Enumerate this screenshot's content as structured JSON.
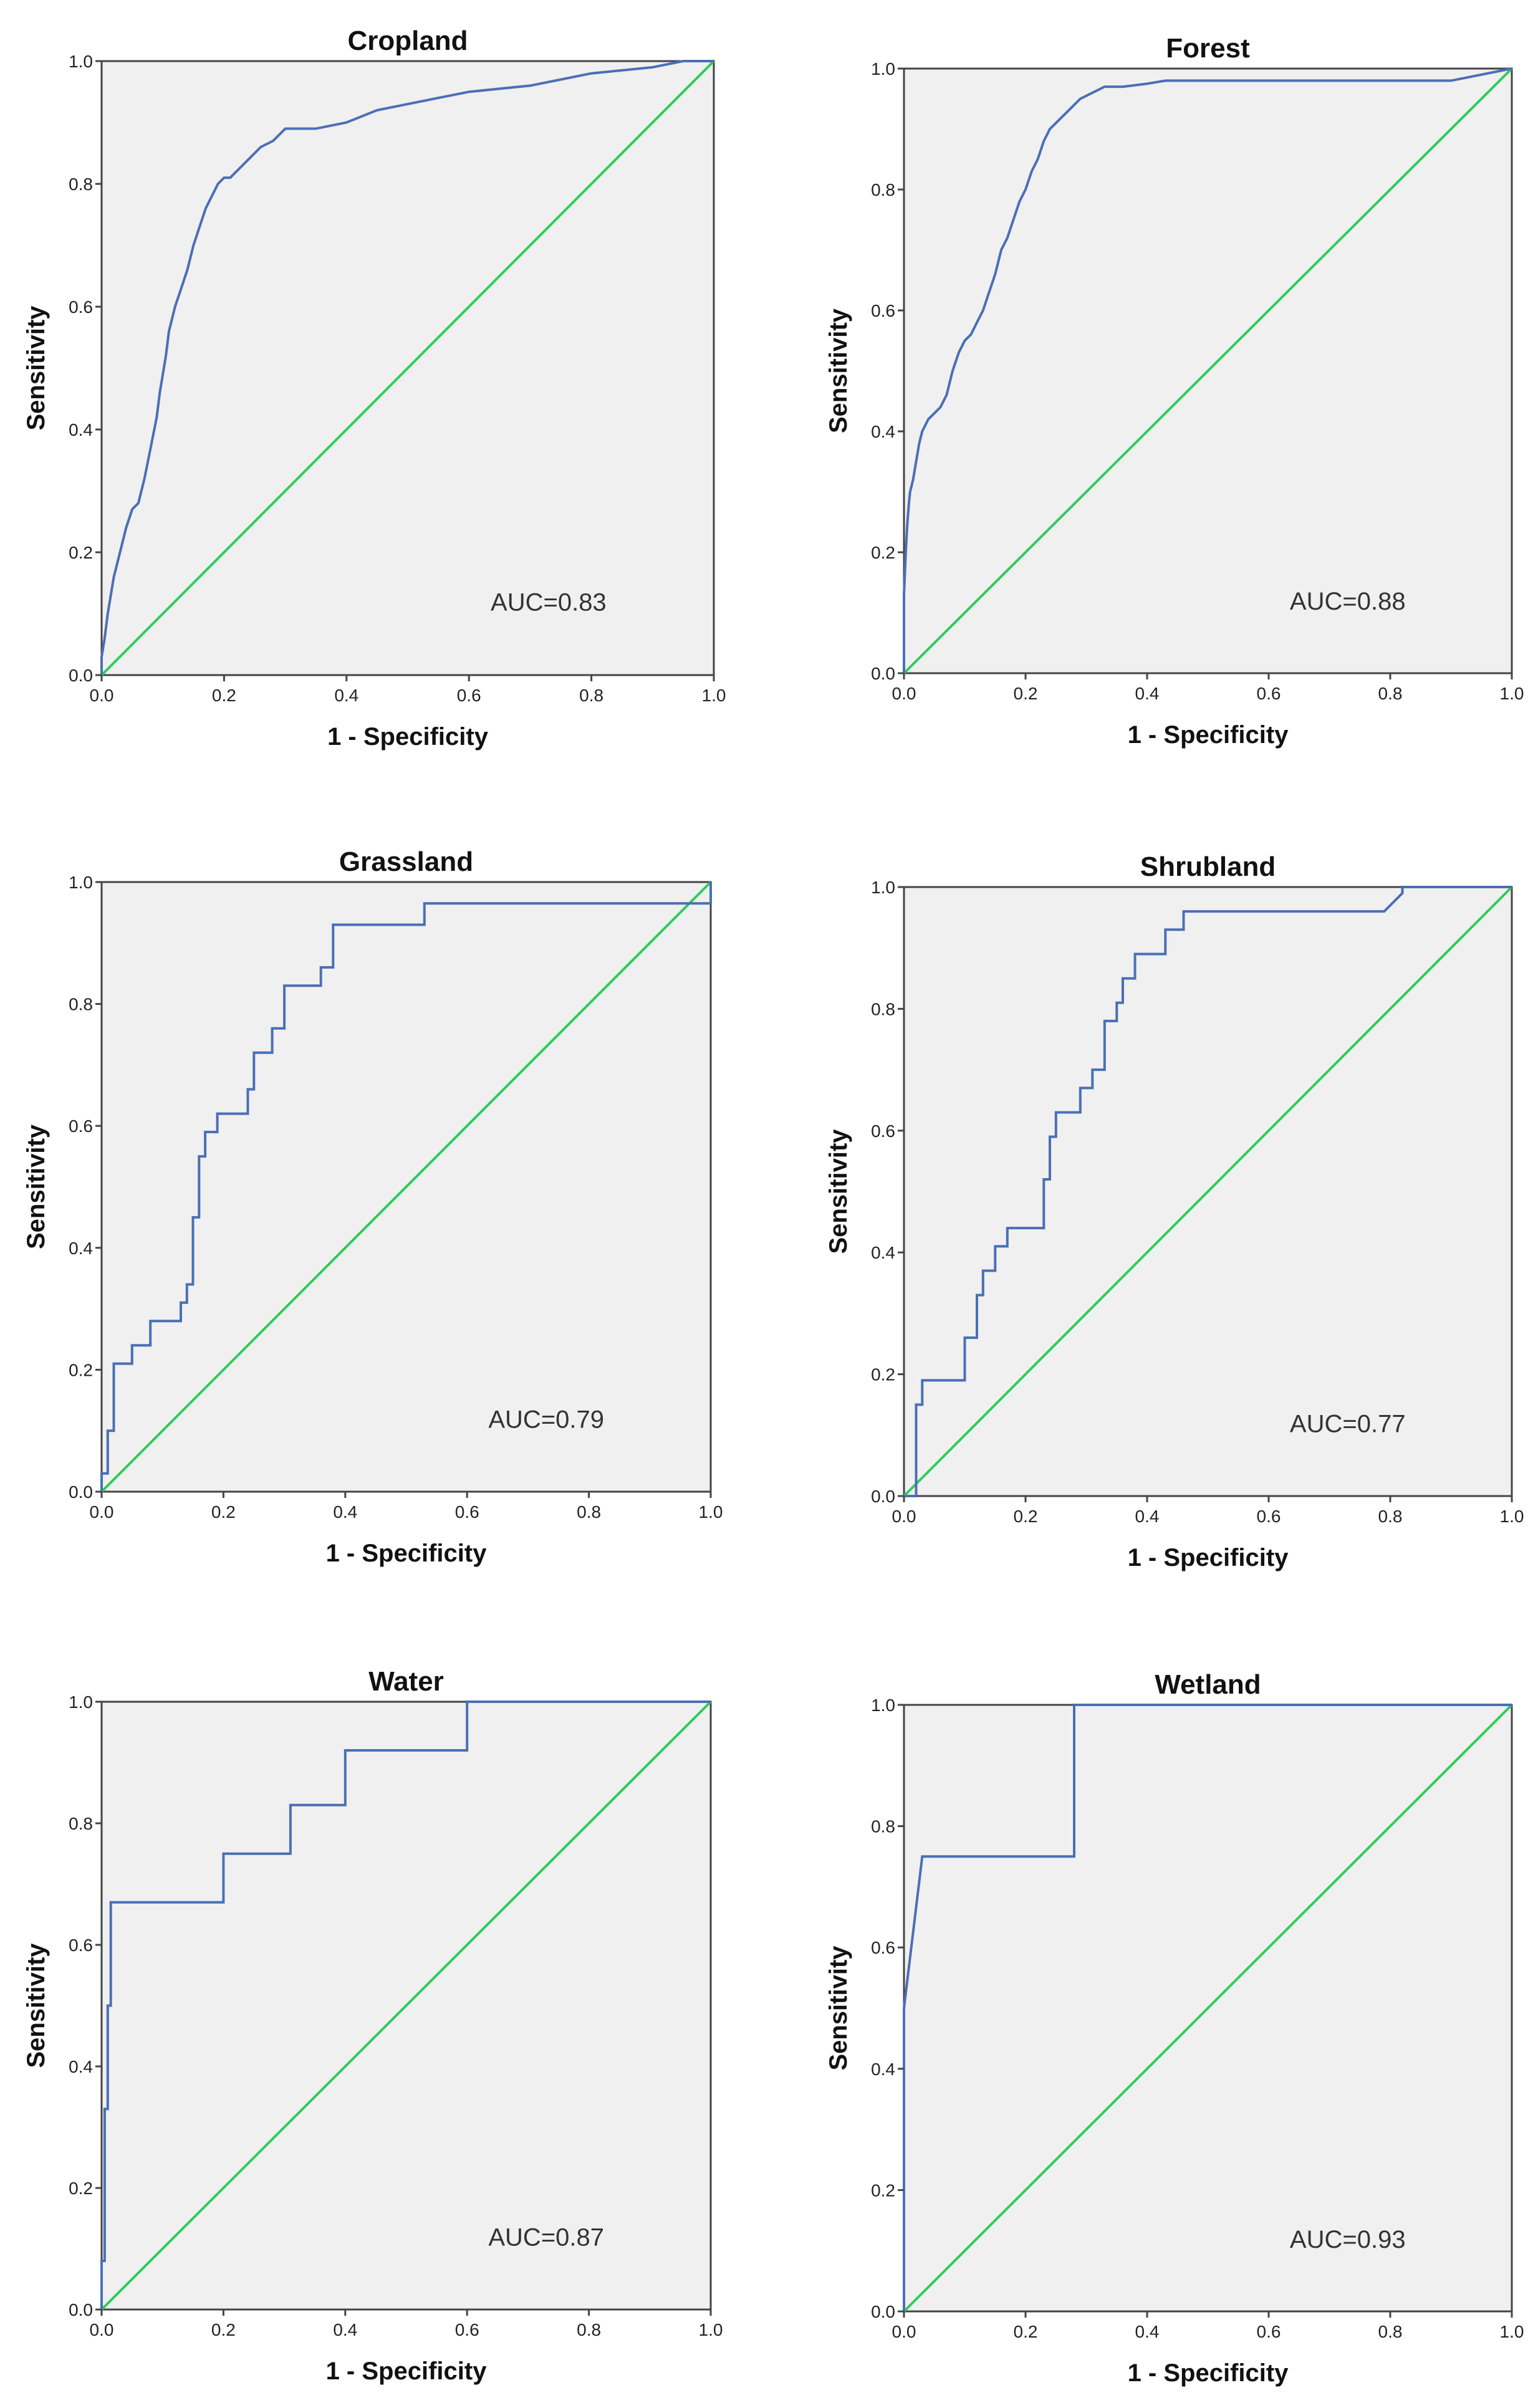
{
  "chart_data": [
    {
      "type": "line",
      "title": "Cropland",
      "xlabel": "1 - Specificity",
      "ylabel": "Sensitivity",
      "xlim": [
        0,
        1
      ],
      "ylim": [
        0,
        1
      ],
      "ticks": [
        "0.0",
        "0.2",
        "0.4",
        "0.6",
        "0.8",
        "1.0"
      ],
      "annotation": "AUC=0.83",
      "grid": false,
      "series": [
        {
          "x": [
            0,
            0,
            0.005,
            0.01,
            0.015,
            0.02,
            0.03,
            0.04,
            0.05,
            0.06,
            0.07,
            0.08,
            0.09,
            0.095,
            0.1,
            0.105,
            0.11,
            0.12,
            0.13,
            0.14,
            0.15,
            0.16,
            0.17,
            0.18,
            0.19,
            0.2,
            0.21,
            0.22,
            0.24,
            0.26,
            0.28,
            0.3,
            0.32,
            0.35,
            0.4,
            0.45,
            0.5,
            0.55,
            0.6,
            0.7,
            0.8,
            0.9,
            0.95,
            1.0
          ],
          "y": [
            0,
            0.03,
            0.06,
            0.1,
            0.13,
            0.16,
            0.2,
            0.24,
            0.27,
            0.28,
            0.32,
            0.37,
            0.42,
            0.46,
            0.49,
            0.52,
            0.56,
            0.6,
            0.63,
            0.66,
            0.7,
            0.73,
            0.76,
            0.78,
            0.8,
            0.81,
            0.81,
            0.82,
            0.84,
            0.86,
            0.87,
            0.89,
            0.89,
            0.89,
            0.9,
            0.92,
            0.93,
            0.94,
            0.95,
            0.96,
            0.98,
            0.99,
            1.0,
            1.0
          ]
        },
        {
          "x": [
            0,
            1
          ],
          "y": [
            0,
            1
          ]
        }
      ]
    },
    {
      "type": "line",
      "title": "Forest",
      "xlabel": "1 - Specificity",
      "ylabel": "Sensitivity",
      "xlim": [
        0,
        1
      ],
      "ylim": [
        0,
        1
      ],
      "ticks": [
        "0.0",
        "0.2",
        "0.4",
        "0.6",
        "0.8",
        "1.0"
      ],
      "annotation": "AUC=0.88",
      "grid": false,
      "series": [
        {
          "x": [
            0,
            0,
            0.003,
            0.005,
            0.008,
            0.01,
            0.015,
            0.02,
            0.025,
            0.03,
            0.04,
            0.05,
            0.06,
            0.07,
            0.08,
            0.09,
            0.1,
            0.11,
            0.12,
            0.13,
            0.14,
            0.15,
            0.16,
            0.17,
            0.18,
            0.19,
            0.2,
            0.21,
            0.22,
            0.23,
            0.24,
            0.25,
            0.27,
            0.29,
            0.31,
            0.33,
            0.36,
            0.4,
            0.43,
            0.5,
            0.6,
            0.7,
            0.8,
            0.9,
            0.95,
            1.0
          ],
          "y": [
            0,
            0.13,
            0.2,
            0.24,
            0.28,
            0.3,
            0.32,
            0.35,
            0.38,
            0.4,
            0.42,
            0.43,
            0.44,
            0.46,
            0.5,
            0.53,
            0.55,
            0.56,
            0.58,
            0.6,
            0.63,
            0.66,
            0.7,
            0.72,
            0.75,
            0.78,
            0.8,
            0.83,
            0.85,
            0.88,
            0.9,
            0.91,
            0.93,
            0.95,
            0.96,
            0.97,
            0.97,
            0.975,
            0.98,
            0.98,
            0.98,
            0.98,
            0.98,
            0.98,
            0.99,
            1.0
          ]
        },
        {
          "x": [
            0,
            1
          ],
          "y": [
            0,
            1
          ]
        }
      ]
    },
    {
      "type": "line",
      "title": "Grassland",
      "xlabel": "1 - Specificity",
      "ylabel": "Sensitivity",
      "xlim": [
        0,
        1
      ],
      "ylim": [
        0,
        1
      ],
      "ticks": [
        "0.0",
        "0.2",
        "0.4",
        "0.6",
        "0.8",
        "1.0"
      ],
      "annotation": "AUC=0.79",
      "grid": false,
      "series": [
        {
          "x": [
            0,
            0,
            0.01,
            0.01,
            0.02,
            0.02,
            0.05,
            0.05,
            0.08,
            0.08,
            0.13,
            0.13,
            0.14,
            0.14,
            0.15,
            0.15,
            0.16,
            0.16,
            0.17,
            0.17,
            0.19,
            0.19,
            0.24,
            0.24,
            0.25,
            0.25,
            0.28,
            0.28,
            0.3,
            0.3,
            0.36,
            0.36,
            0.38,
            0.38,
            0.53,
            0.53,
            1.0,
            1.0
          ],
          "y": [
            0,
            0.03,
            0.03,
            0.1,
            0.1,
            0.21,
            0.21,
            0.24,
            0.24,
            0.28,
            0.28,
            0.31,
            0.31,
            0.34,
            0.34,
            0.45,
            0.45,
            0.55,
            0.55,
            0.59,
            0.59,
            0.62,
            0.62,
            0.66,
            0.66,
            0.72,
            0.72,
            0.76,
            0.76,
            0.83,
            0.83,
            0.86,
            0.86,
            0.93,
            0.93,
            0.965,
            0.965,
            1.0
          ]
        },
        {
          "x": [
            0,
            1
          ],
          "y": [
            0,
            1
          ]
        }
      ]
    },
    {
      "type": "line",
      "title": "Shrubland",
      "xlabel": "1 - Specificity",
      "ylabel": "Sensitivity",
      "xlim": [
        0,
        1
      ],
      "ylim": [
        0,
        1
      ],
      "ticks": [
        "0.0",
        "0.2",
        "0.4",
        "0.6",
        "0.8",
        "1.0"
      ],
      "annotation": "AUC=0.77",
      "grid": false,
      "series": [
        {
          "x": [
            0,
            0.02,
            0.02,
            0.03,
            0.03,
            0.1,
            0.1,
            0.12,
            0.12,
            0.13,
            0.13,
            0.15,
            0.15,
            0.17,
            0.17,
            0.23,
            0.23,
            0.24,
            0.24,
            0.25,
            0.25,
            0.29,
            0.29,
            0.31,
            0.31,
            0.33,
            0.33,
            0.35,
            0.35,
            0.36,
            0.36,
            0.38,
            0.38,
            0.43,
            0.43,
            0.46,
            0.46,
            0.79,
            0.82,
            0.82,
            1.0
          ],
          "y": [
            0,
            0,
            0.15,
            0.15,
            0.19,
            0.19,
            0.26,
            0.26,
            0.33,
            0.33,
            0.37,
            0.37,
            0.41,
            0.41,
            0.44,
            0.44,
            0.52,
            0.52,
            0.59,
            0.59,
            0.63,
            0.63,
            0.67,
            0.67,
            0.7,
            0.7,
            0.78,
            0.78,
            0.81,
            0.81,
            0.85,
            0.85,
            0.89,
            0.89,
            0.93,
            0.93,
            0.96,
            0.96,
            0.99,
            1.0,
            1.0
          ]
        },
        {
          "x": [
            0,
            1
          ],
          "y": [
            0,
            1
          ]
        }
      ]
    },
    {
      "type": "line",
      "title": "Water",
      "xlabel": "1 - Specificity",
      "ylabel": "Sensitivity",
      "xlim": [
        0,
        1
      ],
      "ylim": [
        0,
        1
      ],
      "ticks": [
        "0.0",
        "0.2",
        "0.4",
        "0.6",
        "0.8",
        "1.0"
      ],
      "annotation": "AUC=0.87",
      "grid": false,
      "series": [
        {
          "x": [
            0,
            0,
            0.005,
            0.005,
            0.01,
            0.01,
            0.015,
            0.015,
            0.2,
            0.2,
            0.31,
            0.31,
            0.4,
            0.4,
            0.6,
            0.6,
            1.0,
            1.0
          ],
          "y": [
            0,
            0.08,
            0.08,
            0.33,
            0.33,
            0.5,
            0.5,
            0.67,
            0.67,
            0.75,
            0.75,
            0.83,
            0.83,
            0.92,
            0.92,
            1.0,
            1.0,
            1.0
          ]
        },
        {
          "x": [
            0,
            1
          ],
          "y": [
            0,
            1
          ]
        }
      ]
    },
    {
      "type": "line",
      "title": "Wetland",
      "xlabel": "1 - Specificity",
      "ylabel": "Sensitivity",
      "xlim": [
        0,
        1
      ],
      "ylim": [
        0,
        1
      ],
      "ticks": [
        "0.0",
        "0.2",
        "0.4",
        "0.6",
        "0.8",
        "1.0"
      ],
      "annotation": "AUC=0.93",
      "grid": false,
      "series": [
        {
          "x": [
            0,
            0,
            0.03,
            0.28,
            0.28,
            1.0
          ],
          "y": [
            0,
            0.5,
            0.75,
            0.75,
            1.0,
            1.0
          ]
        },
        {
          "x": [
            0,
            1
          ],
          "y": [
            0,
            1
          ]
        }
      ]
    }
  ]
}
